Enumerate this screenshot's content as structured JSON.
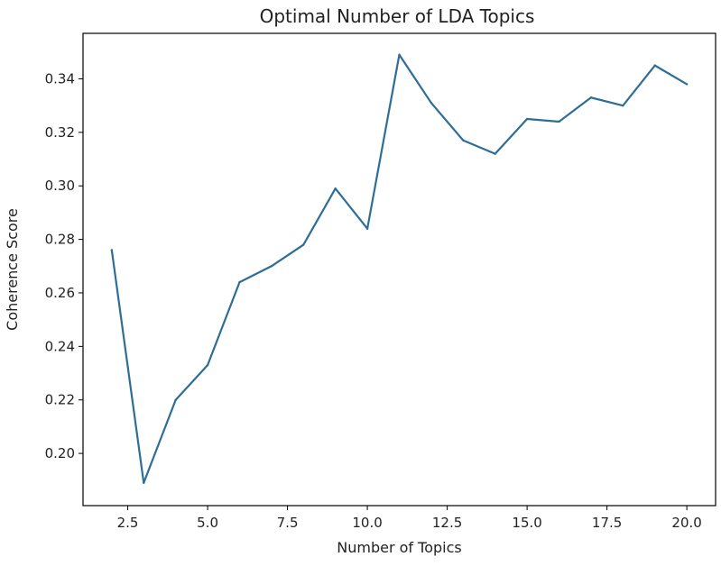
{
  "chart_data": {
    "type": "line",
    "title": "Optimal Number of LDA Topics",
    "xlabel": "Number of Topics",
    "ylabel": "Coherence Score",
    "xlim": [
      1.1,
      20.9
    ],
    "ylim": [
      0.1805,
      0.357
    ],
    "x_ticks": [
      2.5,
      5.0,
      7.5,
      10.0,
      12.5,
      15.0,
      17.5,
      20.0
    ],
    "x_tick_labels": [
      "2.5",
      "5.0",
      "7.5",
      "10.0",
      "12.5",
      "15.0",
      "17.5",
      "20.0"
    ],
    "y_ticks": [
      0.2,
      0.22,
      0.24,
      0.26,
      0.28,
      0.3,
      0.32,
      0.34
    ],
    "y_tick_labels": [
      "0.20",
      "0.22",
      "0.24",
      "0.26",
      "0.28",
      "0.30",
      "0.32",
      "0.34"
    ],
    "grid": false,
    "series": [
      {
        "color": "#2e6e96",
        "x": [
          2,
          3,
          4,
          5,
          6,
          7,
          8,
          9,
          10,
          11,
          12,
          13,
          14,
          15,
          16,
          17,
          18,
          19,
          20
        ],
        "y": [
          0.276,
          0.189,
          0.22,
          0.233,
          0.264,
          0.27,
          0.278,
          0.299,
          0.284,
          0.349,
          0.331,
          0.317,
          0.312,
          0.325,
          0.324,
          0.333,
          0.33,
          0.345,
          0.338
        ]
      }
    ]
  }
}
